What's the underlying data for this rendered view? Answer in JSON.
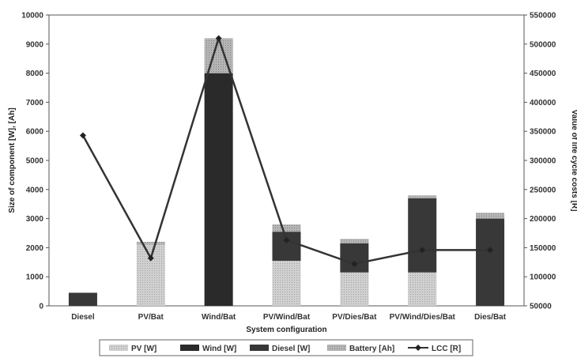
{
  "chart_data": {
    "type": "bar",
    "stacked": true,
    "secondary_type": "line",
    "categories": [
      "Diesel",
      "PV/Bat",
      "Wind/Bat",
      "PV/Wind/Bat",
      "PV/Dies/Bat",
      "PV/Wind/Dies/Bat",
      "Dies/Bat"
    ],
    "series": [
      {
        "name": "PV [W]",
        "color": "#c9c9c9",
        "values": [
          0,
          2100,
          0,
          1550,
          1150,
          1150,
          0
        ]
      },
      {
        "name": "Wind [W]",
        "color": "#2e2e2e",
        "values": [
          0,
          0,
          8000,
          0,
          0,
          0,
          0
        ]
      },
      {
        "name": "Diesel [W]",
        "color": "#3a3a3a",
        "values": [
          450,
          0,
          0,
          1000,
          1000,
          2550,
          3000
        ]
      },
      {
        "name": "Battery [Ah]",
        "color": "#a8a8a8",
        "values": [
          0,
          100,
          1200,
          250,
          150,
          100,
          200
        ]
      }
    ],
    "line_series": {
      "name": "LCC [R]",
      "color": "#333333",
      "values": [
        343000,
        132000,
        510000,
        163000,
        122000,
        146000,
        146000
      ]
    },
    "xlabel": "System configuration",
    "ylabel": "Size of component [W], [Ah]",
    "y2label": "Value of life cycle costs [R]",
    "ylim": [
      0,
      10000
    ],
    "y2lim": [
      50000,
      550000
    ],
    "yticks": [
      "0",
      "1000",
      "2000",
      "3000",
      "4000",
      "5000",
      "6000",
      "7000",
      "8000",
      "9000",
      "10000"
    ],
    "y2ticks": [
      "50000",
      "100000",
      "150000",
      "200000",
      "250000",
      "300000",
      "350000",
      "400000",
      "450000",
      "500000",
      "550000"
    ],
    "legend_position": "bottom",
    "grid": false
  }
}
